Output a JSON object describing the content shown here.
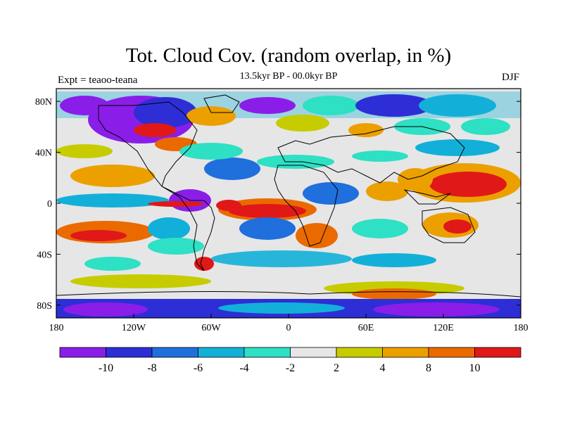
{
  "title": "Tot. Cloud Cov. (random overlap, in %)",
  "subtitle": "13.5kyr BP - 00.0kyr BP",
  "left_label": "Expt = teaoo-teana",
  "right_label": "DJF",
  "lat_ticks": [
    "80N",
    "40N",
    "0",
    "40S",
    "80S"
  ],
  "lat_values": [
    80,
    40,
    0,
    -40,
    -80
  ],
  "lon_ticks": [
    "180",
    "120W",
    "60W",
    "0",
    "60E",
    "120E",
    "180"
  ],
  "lon_values": [
    -180,
    -120,
    -60,
    0,
    60,
    120,
    180
  ],
  "colorbar": {
    "colors": [
      "#8a1ee8",
      "#2d2ed6",
      "#1f6fdd",
      "#12b0d8",
      "#2ee0c4",
      "#e6e6e6",
      "#c6cc00",
      "#eca000",
      "#ea6a00",
      "#e01818"
    ],
    "labels": [
      "-10",
      "-8",
      "-6",
      "-4",
      "-2",
      "2",
      "4",
      "8",
      "10"
    ]
  }
}
